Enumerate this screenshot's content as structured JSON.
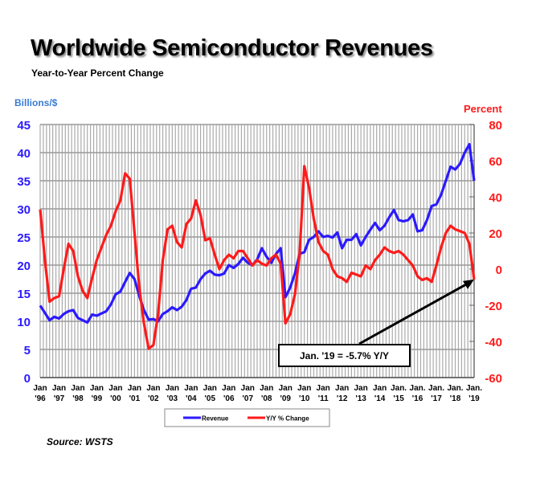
{
  "chart_data": {
    "type": "line",
    "title": "Worldwide Semiconductor Revenues",
    "subtitle": "Year-to-Year Percent Change",
    "ylabel_left": "Billions/$",
    "ylabel_right": "Percent",
    "ylim_left": [
      0,
      45
    ],
    "ylim_right": [
      -60,
      80
    ],
    "yticks_left": [
      "45",
      "40",
      "35",
      "30",
      "25",
      "20",
      "15",
      "10",
      "5",
      "0"
    ],
    "yticks_right": [
      "80",
      "60",
      "40",
      "20",
      "0",
      "-20",
      "-40",
      "-60"
    ],
    "xticks": [
      [
        "Jan",
        "'96"
      ],
      [
        "Jan",
        "'97"
      ],
      [
        "Jan",
        "'98"
      ],
      [
        "Jan",
        "'99"
      ],
      [
        "Jan",
        "'00"
      ],
      [
        "Jan",
        "'01"
      ],
      [
        "Jan",
        "'02"
      ],
      [
        "Jan",
        "'03"
      ],
      [
        "Jan",
        "'04"
      ],
      [
        "Jan",
        "'05"
      ],
      [
        "Jan",
        "'06"
      ],
      [
        "Jan",
        "'07"
      ],
      [
        "Jan",
        "'08"
      ],
      [
        "Jan",
        "'09"
      ],
      [
        "Jan",
        "'10"
      ],
      [
        "Jan",
        "'11"
      ],
      [
        "Jan",
        "'12"
      ],
      [
        "Jan",
        "'13"
      ],
      [
        "Jan",
        "'14"
      ],
      [
        "Jan.",
        "'15"
      ],
      [
        "Jan.",
        "'16"
      ],
      [
        "Jan.",
        "'17"
      ],
      [
        "Jan.",
        "'18"
      ],
      [
        "Jan.",
        "'19"
      ]
    ],
    "x_start": 1996,
    "x_step": 0.25,
    "grid": true,
    "legend_position": "bottom",
    "series": [
      {
        "name": "Revenue",
        "axis": "left",
        "color": "#2b1aff",
        "values": [
          12.8,
          11.5,
          10.2,
          10.8,
          10.5,
          11.3,
          11.8,
          12.0,
          10.6,
          10.2,
          9.8,
          11.2,
          11.0,
          11.4,
          11.8,
          13.0,
          14.8,
          15.3,
          17.0,
          18.6,
          17.5,
          14.5,
          12.0,
          10.3,
          10.4,
          10.0,
          11.3,
          11.8,
          12.5,
          12.0,
          12.6,
          13.8,
          15.8,
          16.0,
          17.5,
          18.5,
          19.0,
          18.3,
          18.2,
          18.5,
          20.0,
          19.5,
          20.2,
          21.3,
          20.4,
          20.0,
          21.0,
          23.0,
          21.5,
          20.4,
          22.0,
          23.0,
          14.3,
          16.0,
          18.5,
          22.0,
          22.3,
          24.5,
          25.0,
          26.0,
          25.0,
          25.2,
          24.9,
          25.8,
          23.0,
          24.5,
          24.5,
          25.5,
          23.5,
          25.0,
          26.3,
          27.5,
          26.2,
          27.0,
          28.5,
          29.8,
          28.0,
          27.8,
          28.0,
          29.0,
          26.0,
          26.2,
          28.0,
          30.5,
          30.8,
          32.5,
          35.0,
          37.5,
          37.0,
          38.0,
          40.0,
          41.5,
          35.0
        ]
      },
      {
        "name": "Y/Y % Change",
        "axis": "right",
        "color": "#ff1a1a",
        "values": [
          33,
          5,
          -18,
          -16,
          -15,
          0,
          14,
          10,
          -4,
          -12,
          -16,
          -5,
          5,
          12,
          19,
          24,
          32,
          38,
          53,
          50,
          20,
          -10,
          -30,
          -44,
          -42,
          -25,
          5,
          22,
          24,
          15,
          12,
          25,
          28,
          38,
          30,
          16,
          17,
          8,
          0,
          5,
          8,
          6,
          10,
          10,
          6,
          2,
          5,
          3,
          2,
          6,
          8,
          3,
          -30,
          -25,
          -14,
          8,
          57,
          45,
          28,
          15,
          10,
          8,
          0,
          -4,
          -5,
          -7,
          -2,
          -3,
          -4,
          2,
          0,
          5,
          8,
          12,
          10,
          9,
          10,
          8,
          5,
          2,
          -4,
          -6,
          -5,
          -7,
          2,
          12,
          20,
          24,
          22,
          21,
          20,
          14,
          -5.7
        ]
      }
    ],
    "annotation": "Jan. '19 = -5.7% Y/Y",
    "source": "Source: WSTS"
  }
}
